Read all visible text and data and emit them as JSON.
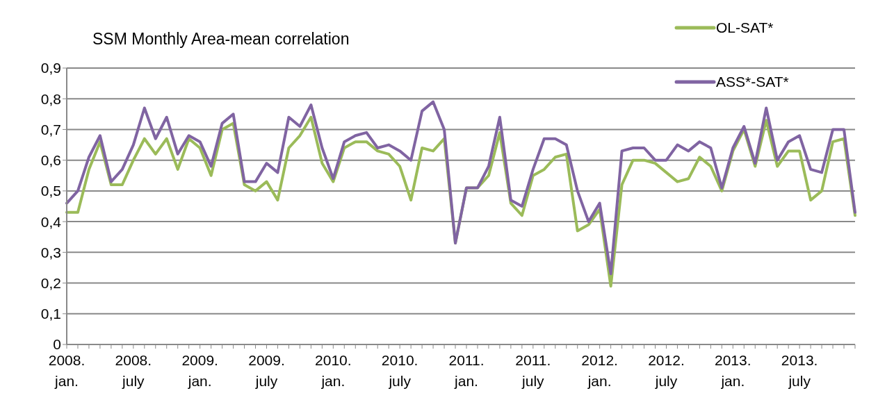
{
  "chart_data": {
    "type": "line",
    "title": "SSM Monthly Area-mean correlation",
    "categories": [
      "2008. jan.",
      null,
      null,
      null,
      null,
      null,
      "2008. july",
      null,
      null,
      null,
      null,
      null,
      "2009. jan.",
      null,
      null,
      null,
      null,
      null,
      "2009. july",
      null,
      null,
      null,
      null,
      null,
      "2010. jan.",
      null,
      null,
      null,
      null,
      null,
      "2010. july",
      null,
      null,
      null,
      null,
      null,
      "2011. jan.",
      null,
      null,
      null,
      null,
      null,
      "2011. july",
      null,
      null,
      null,
      null,
      null,
      "2012. jan.",
      null,
      null,
      null,
      null,
      null,
      "2012. july",
      null,
      null,
      null,
      null,
      null,
      "2013. jan.",
      null,
      null,
      null,
      null,
      null,
      "2013. july",
      null,
      null,
      null,
      null,
      null
    ],
    "series": [
      {
        "name": "OL-SAT*",
        "color": "#9bbb59",
        "values": [
          0.43,
          0.43,
          0.57,
          0.66,
          0.52,
          0.52,
          0.6,
          0.67,
          0.62,
          0.67,
          0.57,
          0.67,
          0.64,
          0.55,
          0.7,
          0.72,
          0.52,
          0.5,
          0.53,
          0.47,
          0.64,
          0.68,
          0.74,
          0.59,
          0.53,
          0.64,
          0.66,
          0.66,
          0.63,
          0.62,
          0.58,
          0.47,
          0.64,
          0.63,
          0.67,
          0.33,
          0.51,
          0.51,
          0.55,
          0.69,
          0.46,
          0.42,
          0.55,
          0.57,
          0.61,
          0.62,
          0.37,
          0.39,
          0.44,
          0.19,
          0.52,
          0.6,
          0.6,
          0.59,
          0.56,
          0.53,
          0.54,
          0.61,
          0.58,
          0.5,
          0.63,
          0.7,
          0.58,
          0.73,
          0.58,
          0.63,
          0.63,
          0.47,
          0.5,
          0.66,
          0.67,
          0.42
        ]
      },
      {
        "name": "ASS*-SAT*",
        "color": "#8064a2",
        "values": [
          0.46,
          0.5,
          0.61,
          0.68,
          0.53,
          0.57,
          0.65,
          0.77,
          0.67,
          0.74,
          0.62,
          0.68,
          0.66,
          0.58,
          0.72,
          0.75,
          0.53,
          0.53,
          0.59,
          0.56,
          0.74,
          0.71,
          0.78,
          0.64,
          0.54,
          0.66,
          0.68,
          0.69,
          0.64,
          0.65,
          0.63,
          0.6,
          0.76,
          0.79,
          0.7,
          0.33,
          0.51,
          0.51,
          0.58,
          0.74,
          0.47,
          0.45,
          0.57,
          0.67,
          0.67,
          0.65,
          0.5,
          0.4,
          0.46,
          0.23,
          0.63,
          0.64,
          0.64,
          0.6,
          0.6,
          0.65,
          0.63,
          0.66,
          0.64,
          0.51,
          0.64,
          0.71,
          0.59,
          0.77,
          0.6,
          0.66,
          0.68,
          0.57,
          0.56,
          0.7,
          0.7,
          0.43
        ]
      }
    ],
    "ylim": [
      0,
      0.9
    ],
    "yticks": [
      0,
      {
        "value": 0.1,
        "label": "0,1"
      },
      {
        "value": 0.2,
        "label": "0,2"
      },
      {
        "value": 0.3,
        "label": "0,3"
      },
      {
        "value": 0.4,
        "label": "0,4"
      },
      {
        "value": 0.5,
        "label": "0,5"
      },
      {
        "value": 0.6,
        "label": "0,6"
      },
      {
        "value": 0.7,
        "label": "0,7"
      },
      {
        "value": 0.8,
        "label": "0,8"
      },
      {
        "value": 0.9,
        "label": "0,9"
      }
    ],
    "grid": "y",
    "legend": "top right",
    "marker": "none",
    "line_style": "solid"
  }
}
